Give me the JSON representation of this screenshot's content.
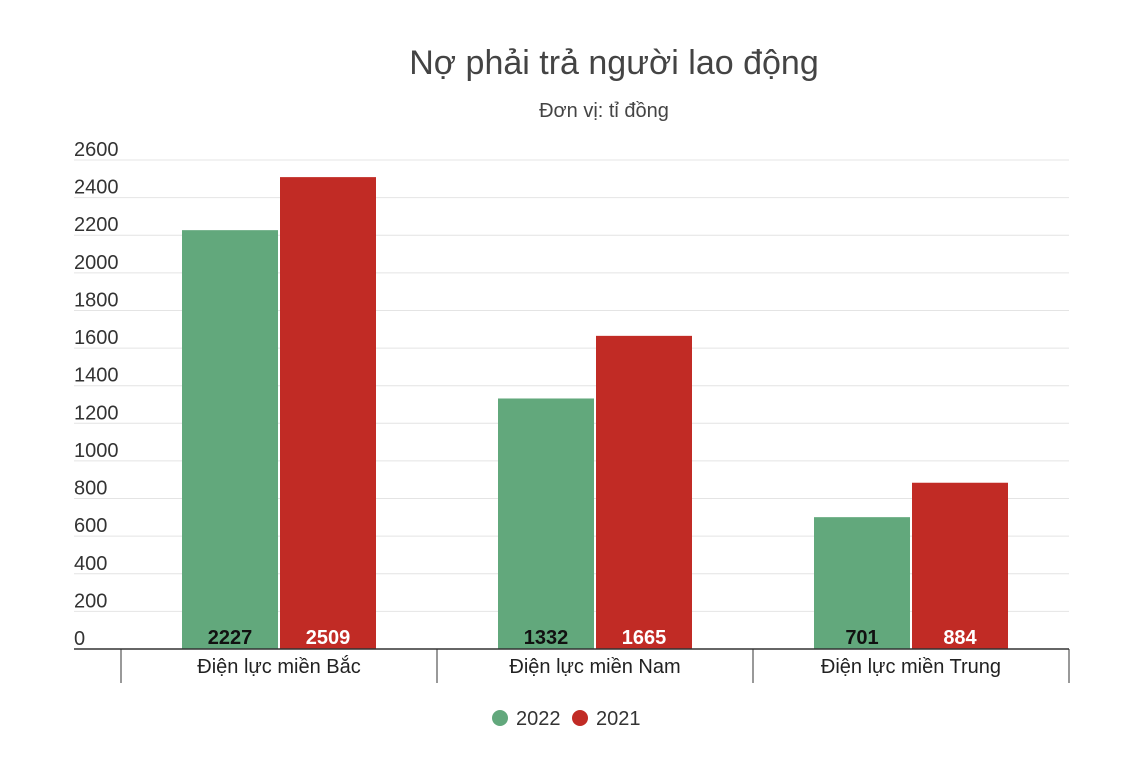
{
  "chart_data": {
    "type": "bar",
    "title": "Nợ phải trả người lao động",
    "subtitle": "Đơn vị: tỉ đồng",
    "categories": [
      "Điện lực miền Bắc",
      "Điện lực miền Nam",
      "Điện lực miền Trung"
    ],
    "series": [
      {
        "name": "2022",
        "values": [
          2227,
          1332,
          701
        ],
        "color": "#62a87c",
        "label_color": "#111111"
      },
      {
        "name": "2021",
        "values": [
          2509,
          1665,
          884
        ],
        "color": "#c12b25",
        "label_color": "#ffffff"
      }
    ],
    "ylim": [
      0,
      2600
    ],
    "yticks": [
      0,
      200,
      400,
      600,
      800,
      1000,
      1200,
      1400,
      1600,
      1800,
      2000,
      2200,
      2400,
      2600
    ],
    "grid": true,
    "legend": "bottom-center"
  }
}
